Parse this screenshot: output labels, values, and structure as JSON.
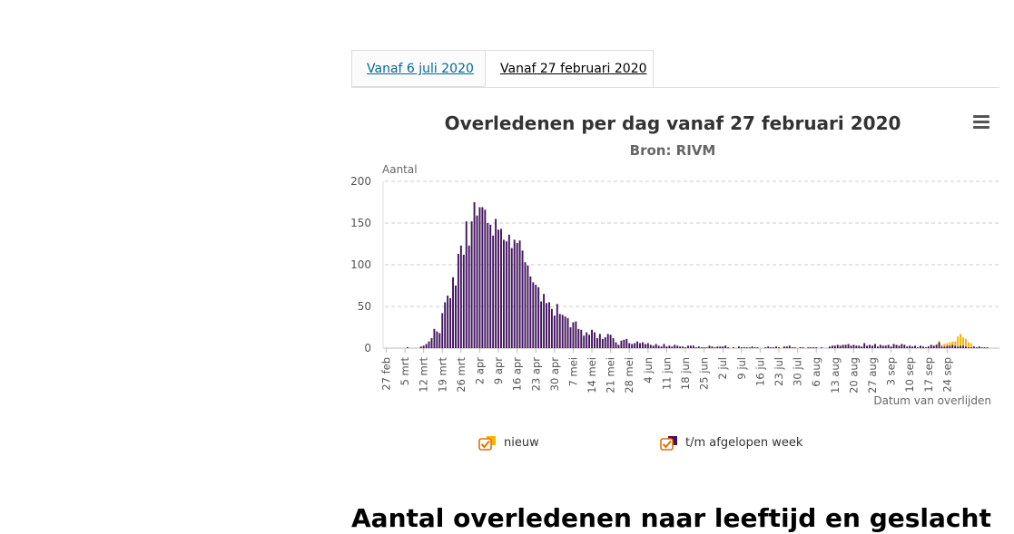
{
  "tabs": [
    {
      "label": "Vanaf 6 juli 2020",
      "active": false
    },
    {
      "label": "Vanaf 27 februari 2020",
      "active": true
    }
  ],
  "menu": {
    "icon": "hamburger-menu-icon"
  },
  "chart_data": {
    "type": "bar",
    "stacked": true,
    "title": "Overledenen per dag vanaf 27 februari 2020",
    "subtitle": "Bron: RIVM",
    "ylabel": "Aantal",
    "xlabel": "Datum van overlijden",
    "ylim": [
      0,
      200
    ],
    "yticks": [
      0,
      50,
      100,
      150,
      200
    ],
    "grid": true,
    "legend_position": "bottom",
    "x_start_date": "27 feb",
    "x_ticks": [
      "27 feb",
      "5 mrt",
      "12 mrt",
      "19 mrt",
      "26 mrt",
      "2 apr",
      "9 apr",
      "16 apr",
      "23 apr",
      "30 apr",
      "7 mei",
      "14 mei",
      "21 mei",
      "28 mei",
      "4 jun",
      "11 jun",
      "18 jun",
      "25 jun",
      "2 jul",
      "9 jul",
      "16 jul",
      "23 jul",
      "30 jul",
      "6 aug",
      "13 aug",
      "20 aug",
      "27 aug",
      "3 sep",
      "10 sep",
      "17 sep",
      "24 sep"
    ],
    "series": [
      {
        "name": "nieuw",
        "color": "#f9b200",
        "values": [
          0,
          0,
          0,
          0,
          0,
          0,
          0,
          0,
          0,
          0,
          0,
          0,
          0,
          0,
          0,
          0,
          0,
          0,
          0,
          0,
          0,
          0,
          0,
          0,
          0,
          0,
          0,
          0,
          0,
          0,
          0,
          0,
          0,
          0,
          0,
          0,
          0,
          0,
          0,
          0,
          0,
          0,
          0,
          0,
          0,
          0,
          0,
          0,
          0,
          0,
          0,
          0,
          0,
          0,
          0,
          0,
          0,
          0,
          0,
          0,
          0,
          0,
          0,
          0,
          0,
          0,
          0,
          0,
          0,
          0,
          0,
          0,
          0,
          0,
          0,
          0,
          0,
          0,
          0,
          0,
          0,
          0,
          0,
          0,
          0,
          0,
          0,
          0,
          0,
          0,
          0,
          0,
          0,
          0,
          0,
          0,
          0,
          0,
          0,
          0,
          0,
          0,
          0,
          0,
          0,
          0,
          0,
          0,
          0,
          0,
          0,
          0,
          0,
          0,
          0,
          0,
          0,
          0,
          0,
          0,
          0,
          0,
          0,
          0,
          0,
          0,
          0,
          0,
          0,
          0,
          0,
          0,
          0,
          0,
          0,
          0,
          0,
          0,
          0,
          0,
          0,
          0,
          0,
          0,
          0,
          0,
          0,
          0,
          0,
          0,
          0,
          0,
          0,
          0,
          0,
          0,
          0,
          0,
          0,
          0,
          0,
          0,
          0,
          0,
          0,
          0,
          0,
          0,
          0,
          0,
          0,
          0,
          0,
          0,
          0,
          0,
          0,
          0,
          0,
          0,
          0,
          0,
          0,
          0,
          0,
          0,
          0,
          0,
          0,
          0,
          0,
          0,
          0,
          0,
          0,
          0,
          0,
          0,
          0,
          0,
          0,
          0,
          0,
          0,
          0,
          0,
          1,
          2,
          2,
          3,
          3,
          4,
          4,
          5,
          12,
          14,
          10,
          9,
          6,
          5
        ]
      },
      {
        "name": "t/m afgelopen week",
        "color": "#42145f",
        "values": [
          0,
          0,
          0,
          0,
          0,
          0,
          0,
          0,
          1,
          0,
          0,
          0,
          0,
          2,
          3,
          5,
          8,
          12,
          23,
          20,
          18,
          42,
          55,
          63,
          60,
          85,
          75,
          113,
          123,
          112,
          152,
          123,
          152,
          175,
          159,
          169,
          169,
          166,
          150,
          148,
          135,
          155,
          142,
          143,
          130,
          128,
          136,
          120,
          130,
          126,
          129,
          117,
          103,
          99,
          86,
          79,
          76,
          73,
          56,
          65,
          54,
          55,
          47,
          39,
          53,
          41,
          40,
          38,
          36,
          25,
          31,
          32,
          23,
          22,
          15,
          19,
          16,
          22,
          19,
          12,
          17,
          11,
          13,
          17,
          16,
          12,
          7,
          4,
          9,
          10,
          11,
          6,
          5,
          6,
          8,
          6,
          7,
          5,
          6,
          4,
          3,
          5,
          3,
          2,
          5,
          2,
          3,
          2,
          4,
          3,
          2,
          2,
          1,
          3,
          3,
          3,
          1,
          2,
          1,
          1,
          1,
          3,
          2,
          1,
          2,
          2,
          2,
          3,
          1,
          0,
          1,
          0,
          2,
          1,
          1,
          1,
          1,
          2,
          1,
          1,
          0,
          0,
          1,
          2,
          1,
          1,
          2,
          1,
          0,
          2,
          2,
          3,
          1,
          1,
          0,
          1,
          1,
          0,
          1,
          1,
          1,
          1,
          0,
          1,
          0,
          0,
          2,
          3,
          3,
          4,
          3,
          4,
          4,
          5,
          3,
          4,
          3,
          3,
          2,
          6,
          3,
          4,
          3,
          5,
          2,
          4,
          3,
          3,
          4,
          2,
          5,
          4,
          3,
          5,
          4,
          2,
          3,
          2,
          3,
          1,
          3,
          2,
          1,
          2,
          4,
          3,
          4,
          7,
          2,
          2,
          3,
          3,
          4,
          3,
          2,
          3,
          3,
          2,
          1,
          1,
          2,
          1,
          2,
          1,
          1,
          1
        ]
      }
    ]
  },
  "legend": {
    "items": [
      {
        "label": "nieuw",
        "color": "#f9b200"
      },
      {
        "label": "t/m afgelopen week",
        "color": "#42145f"
      }
    ],
    "check_color": "#e17000"
  },
  "below": {
    "heading": "Aantal overledenen naar leeftijd en geslacht"
  }
}
